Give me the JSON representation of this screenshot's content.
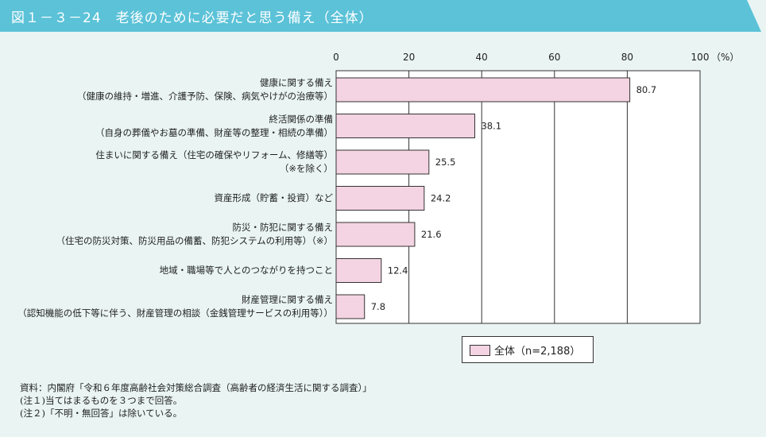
{
  "header": {
    "title": "図１－３－24　老後のために必要だと思う備え（全体）",
    "color": "#5bc2d8"
  },
  "chart_data": {
    "type": "bar",
    "orientation": "horizontal",
    "title": "図１－３－24　老後のために必要だと思う備え（全体）",
    "xlim": [
      0,
      100
    ],
    "x_ticks": [
      "0",
      "20",
      "40",
      "60",
      "80",
      "100"
    ],
    "x_unit": "（%）",
    "grid": true,
    "legend_position": "bottom-right",
    "categories": [
      {
        "line1": "健康に関する備え",
        "line2": "（健康の維持・増進、介護予防、保険、病気やけがの治療等）"
      },
      {
        "line1": "終活関係の準備",
        "line2": "（自身の葬儀やお墓の準備、財産等の整理・相続の準備）"
      },
      {
        "line1": "住まいに関する備え（住宅の確保やリフォーム、修繕等）",
        "line2": "（※を除く）"
      },
      {
        "line1": "資産形成（貯蓄・投資）など",
        "line2": ""
      },
      {
        "line1": "防災・防犯に関する備え",
        "line2": "（住宅の防災対策、防災用品の備蓄、防犯システムの利用等）（※）"
      },
      {
        "line1": "地域・職場等で人とのつながりを持つこと",
        "line2": ""
      },
      {
        "line1": "財産管理に関する備え",
        "line2": "（認知機能の低下等に伴う、財産管理の相談（金銭管理サービスの利用等））"
      }
    ],
    "series": [
      {
        "name": "全体（n=2,188）",
        "color": "#f4d3e2",
        "values": [
          80.7,
          38.1,
          25.5,
          24.2,
          21.6,
          12.4,
          7.8
        ],
        "labels": [
          "80.7",
          "38.1",
          "25.5",
          "24.2",
          "21.6",
          "12.4",
          "7.8"
        ]
      }
    ]
  },
  "notes": [
    "資料：内閣府「令和６年度高齢社会対策総合調査（高齢者の経済生活に関する調査）」",
    "(注１)当てはまるものを３つまで回答。",
    "(注２)「不明・無回答」は除いている。"
  ]
}
